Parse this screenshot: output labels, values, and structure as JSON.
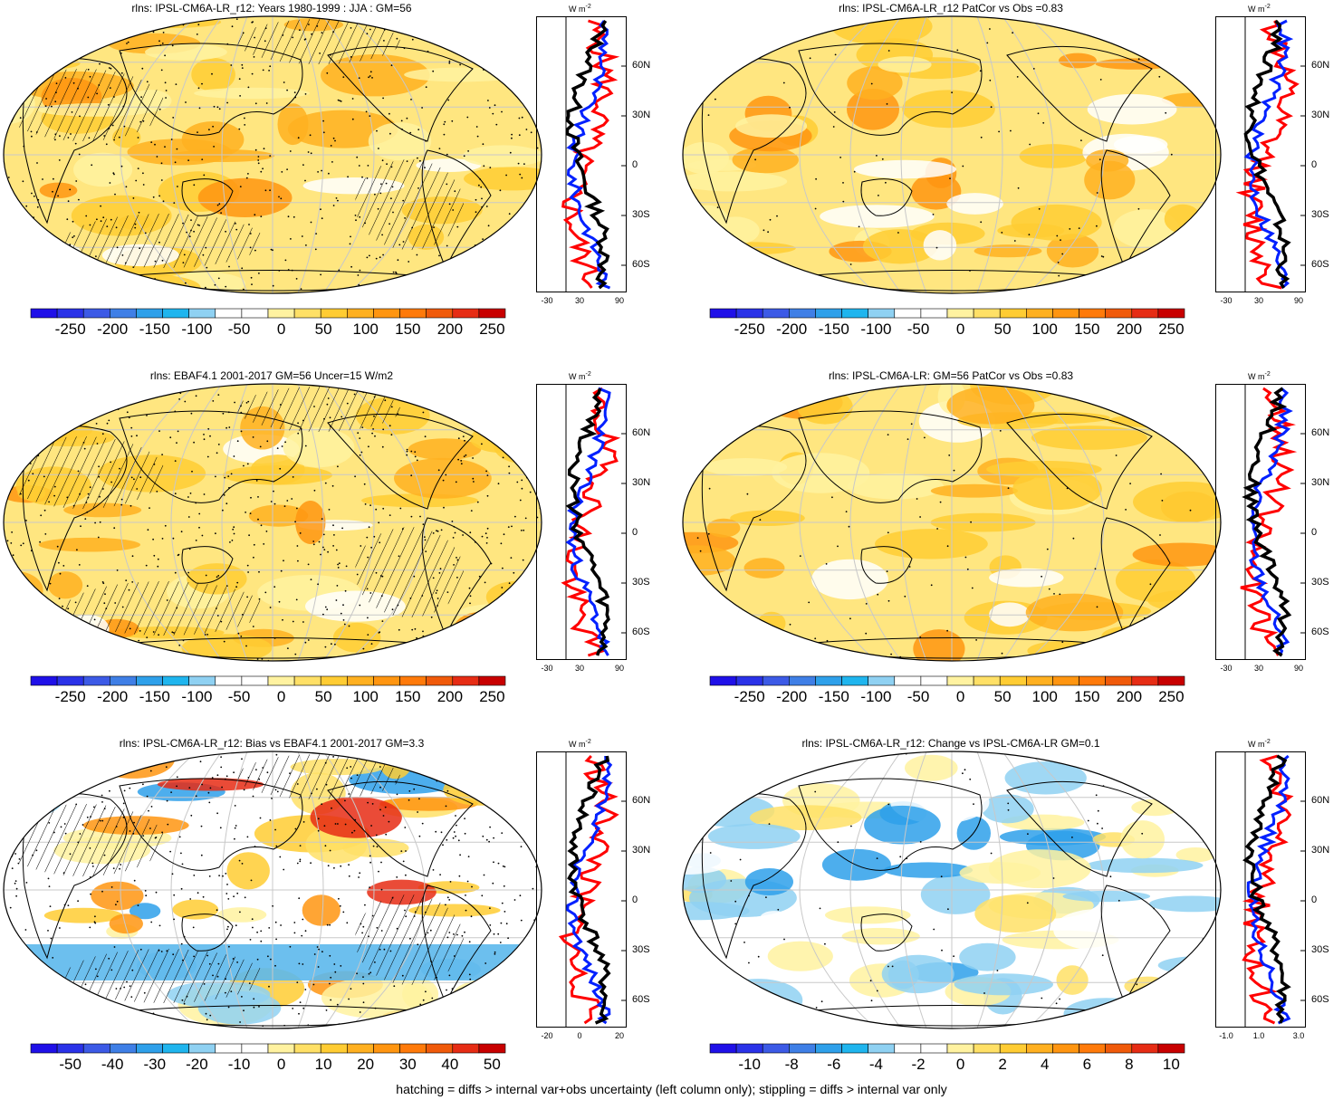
{
  "footnote": "hatching = diffs > internal var+obs uncertainty (left column only); stippling = diffs > internal var only",
  "colors": {
    "scale": [
      "#1f10e8",
      "#2a32e8",
      "#3c5ae6",
      "#3f7fe6",
      "#2ea0ea",
      "#1fb5ee",
      "#8fd1f2",
      "#ffffff",
      "#ffffff",
      "#fff2a0",
      "#ffe066",
      "#ffcc33",
      "#ffb020",
      "#ff9510",
      "#ff7a0a",
      "#f05a0a",
      "#e62c14",
      "#c80000"
    ],
    "zonal_model": "#000000",
    "zonal_obs": "#0020ff",
    "zonal_diff": "#ff0000"
  },
  "chart_data": [
    {
      "type": "heatmap",
      "title": "rlns: IPSL-CM6A-LR_r12: Years 1980-1999 : JJA : GM=56",
      "colorbar_labels": [
        "-250",
        "-200",
        "-150",
        "-100",
        "-50",
        "0",
        "50",
        "100",
        "150",
        "200",
        "250"
      ],
      "zonal": {
        "unit": "W m",
        "unit_exp": "-2",
        "yticks": [
          "60N",
          "30N",
          "0",
          "30S",
          "60S"
        ],
        "xticks": [
          "-30",
          "30",
          "90"
        ]
      }
    },
    {
      "type": "heatmap",
      "title": "rlns: IPSL-CM6A-LR_r12 PatCor vs Obs =0.83",
      "colorbar_labels": [
        "-250",
        "-200",
        "-150",
        "-100",
        "-50",
        "0",
        "50",
        "100",
        "150",
        "200",
        "250"
      ],
      "zonal": {
        "unit": "W m",
        "unit_exp": "-2",
        "yticks": [
          "60N",
          "30N",
          "0",
          "30S",
          "60S"
        ],
        "xticks": [
          "-30",
          "30",
          "90"
        ]
      }
    },
    {
      "type": "heatmap",
      "title": "rlns: EBAF4.1 2001-2017 GM=56 Uncer=15 W/m2",
      "colorbar_labels": [
        "-250",
        "-200",
        "-150",
        "-100",
        "-50",
        "0",
        "50",
        "100",
        "150",
        "200",
        "250"
      ],
      "zonal": {
        "unit": "W m",
        "unit_exp": "-2",
        "yticks": [
          "60N",
          "30N",
          "0",
          "30S",
          "60S"
        ],
        "xticks": [
          "-30",
          "30",
          "90"
        ]
      }
    },
    {
      "type": "heatmap",
      "title": "rlns: IPSL-CM6A-LR: GM=56 PatCor vs Obs =0.83",
      "colorbar_labels": [
        "-250",
        "-200",
        "-150",
        "-100",
        "-50",
        "0",
        "50",
        "100",
        "150",
        "200",
        "250"
      ],
      "zonal": {
        "unit": "W m",
        "unit_exp": "-2",
        "yticks": [
          "60N",
          "30N",
          "0",
          "30S",
          "60S"
        ],
        "xticks": [
          "-30",
          "30",
          "90"
        ]
      }
    },
    {
      "type": "heatmap",
      "title": "rlns: IPSL-CM6A-LR_r12: Bias vs EBAF4.1 2001-2017 GM=3.3",
      "colorbar_labels": [
        "-50",
        "-40",
        "-30",
        "-20",
        "-10",
        "0",
        "10",
        "20",
        "30",
        "40",
        "50"
      ],
      "zonal": {
        "unit": "W m",
        "unit_exp": "-2",
        "yticks": [
          "60N",
          "30N",
          "0",
          "30S",
          "60S"
        ],
        "xticks": [
          "-20",
          "0",
          "20"
        ]
      }
    },
    {
      "type": "heatmap",
      "title": "rlns: IPSL-CM6A-LR_r12: Change vs IPSL-CM6A-LR GM=0.1",
      "colorbar_labels": [
        "-10",
        "-8",
        "-6",
        "-4",
        "-2",
        "0",
        "2",
        "4",
        "6",
        "8",
        "10"
      ],
      "zonal": {
        "unit": "W m",
        "unit_exp": "-2",
        "yticks": [
          "60N",
          "30N",
          "0",
          "30S",
          "60S"
        ],
        "xticks": [
          "-1.0",
          "1.0",
          "3.0"
        ]
      }
    }
  ]
}
